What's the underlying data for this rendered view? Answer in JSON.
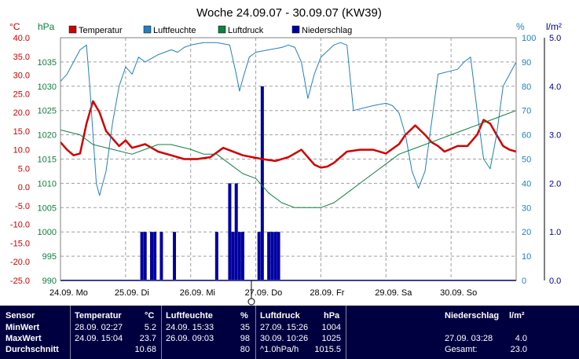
{
  "title": "Woche 24.09.07 - 30.09.07 (KW39)",
  "units": {
    "temp": "°C",
    "pressure": "hPa",
    "humidity": "%",
    "rain": "l/m²"
  },
  "legend": [
    {
      "label": "Temperatur",
      "color": "#d00000"
    },
    {
      "label": "Luftfeuchte",
      "color": "#2080c0"
    },
    {
      "label": "Luftdruck",
      "color": "#108040"
    },
    {
      "label": "Niederschlag",
      "color": "#0000a0"
    }
  ],
  "axes": {
    "temp_ticks": [
      "40.0",
      "35.0",
      "30.0",
      "25.0",
      "20.0",
      "15.0",
      "10.0",
      "5.0",
      "0.0",
      "-5.0",
      "-10.0",
      "-15.0",
      "-20.0",
      "-25.0"
    ],
    "pressure_ticks": [
      "1035",
      "1030",
      "1025",
      "1020",
      "1015",
      "1010",
      "1005",
      "1000",
      "995",
      "990"
    ],
    "humidity_ticks": [
      "100",
      "90",
      "80",
      "70",
      "60",
      "50",
      "40",
      "30",
      "20",
      "10",
      "0"
    ],
    "rain_ticks": [
      "5.0",
      "4.0",
      "3.0",
      "2.0",
      "1.0",
      "0.0"
    ],
    "day_labels": [
      "24.09. Mo",
      "25.09. Di",
      "26.09. Mi",
      "27.09. Do",
      "28.09. Fr",
      "29.09. Sa",
      "30.09. So"
    ]
  },
  "chart_data": {
    "type": "line",
    "x_unit": "days since 24.09.07 00:00",
    "xlim": [
      0,
      7
    ],
    "grid": true,
    "legend_position": "top",
    "series": [
      {
        "name": "Temperatur",
        "axis": "temp",
        "ylim": [
          -25,
          40
        ],
        "color": "#d00000",
        "x": [
          0,
          0.1,
          0.2,
          0.3,
          0.4,
          0.5,
          0.6,
          0.7,
          0.8,
          0.9,
          1.0,
          1.1,
          1.2,
          1.3,
          1.4,
          1.5,
          1.7,
          1.9,
          2.1,
          2.3,
          2.5,
          2.8,
          2.95,
          3.1,
          3.3,
          3.5,
          3.7,
          3.9,
          4.0,
          4.1,
          4.2,
          4.4,
          4.6,
          4.8,
          5.0,
          5.2,
          5.3,
          5.45,
          5.6,
          5.7,
          5.8,
          5.9,
          6.1,
          6.25,
          6.4,
          6.5,
          6.6,
          6.7,
          6.8,
          6.9,
          7.0
        ],
        "y": [
          12,
          10,
          8.5,
          9,
          17,
          23,
          20,
          15,
          13,
          11,
          12.5,
          10.5,
          11,
          11.5,
          10.5,
          9.5,
          8.5,
          7.5,
          7.5,
          8,
          10.5,
          8.5,
          8,
          7.5,
          7,
          8,
          10,
          6,
          5.2,
          5.5,
          6.5,
          9.5,
          10,
          10,
          9,
          11.5,
          14,
          16.5,
          14,
          12,
          11,
          9.5,
          11,
          11,
          14,
          18,
          17,
          14,
          11,
          10,
          9.5
        ]
      },
      {
        "name": "Luftfeuchte",
        "axis": "humidity",
        "ylim": [
          0,
          100
        ],
        "color": "#2080c0",
        "x": [
          0,
          0.1,
          0.2,
          0.3,
          0.4,
          0.45,
          0.5,
          0.55,
          0.6,
          0.7,
          0.8,
          0.9,
          1.0,
          1.1,
          1.2,
          1.3,
          1.5,
          1.7,
          1.8,
          1.9,
          2.0,
          2.2,
          2.4,
          2.6,
          2.7,
          2.75,
          2.8,
          2.9,
          3.0,
          3.2,
          3.4,
          3.5,
          3.6,
          3.7,
          3.8,
          3.9,
          4.0,
          4.2,
          4.3,
          4.4,
          4.5,
          4.8,
          5.0,
          5.1,
          5.2,
          5.3,
          5.4,
          5.5,
          5.6,
          5.8,
          6.1,
          6.2,
          6.3,
          6.4,
          6.5,
          6.6,
          6.7,
          6.8,
          6.9,
          7.0
        ],
        "y": [
          82,
          85,
          90,
          95,
          97,
          80,
          60,
          40,
          35,
          45,
          65,
          80,
          88,
          85,
          92,
          90,
          93,
          95,
          94,
          96,
          97,
          98,
          98,
          97,
          85,
          78,
          83,
          92,
          94,
          95,
          96,
          97,
          96,
          90,
          75,
          85,
          92,
          97,
          98,
          97,
          70,
          72,
          73,
          72,
          69,
          60,
          45,
          38,
          45,
          85,
          87,
          90,
          92,
          70,
          50,
          46,
          60,
          80,
          85,
          90
        ]
      },
      {
        "name": "Luftdruck",
        "axis": "pressure",
        "ylim": [
          990,
          1040
        ],
        "color": "#108040",
        "x": [
          0,
          0.3,
          0.5,
          0.8,
          1.1,
          1.3,
          1.5,
          1.7,
          2.0,
          2.2,
          2.4,
          2.6,
          2.8,
          3.0,
          3.2,
          3.4,
          3.6,
          3.8,
          4.0,
          4.2,
          4.4,
          4.6,
          4.8,
          5.0,
          5.2,
          5.4,
          5.6,
          5.8,
          6.0,
          6.2,
          6.4,
          6.6,
          6.8,
          7.0
        ],
        "y": [
          1021,
          1020,
          1018,
          1017,
          1016,
          1017,
          1018,
          1018,
          1017,
          1016,
          1016,
          1014,
          1012,
          1011,
          1008,
          1006,
          1005,
          1005,
          1005,
          1006,
          1008,
          1010,
          1012,
          1014,
          1016,
          1017,
          1018,
          1019,
          1020,
          1021,
          1022,
          1023,
          1024,
          1025
        ]
      },
      {
        "name": "Niederschlag",
        "axis": "rain",
        "ylim": [
          0,
          5
        ],
        "type": "bar",
        "color": "#0000a0",
        "x": [
          1.25,
          1.3,
          1.4,
          1.45,
          1.55,
          1.75,
          2.4,
          2.6,
          2.65,
          2.7,
          2.75,
          2.8,
          3.05,
          3.1,
          3.2,
          3.25,
          3.3,
          3.35
        ],
        "y": [
          1.0,
          1.0,
          1.0,
          1.0,
          1.0,
          1.0,
          1.0,
          2.0,
          1.0,
          2.0,
          1.0,
          1.0,
          1.0,
          4.0,
          1.0,
          1.0,
          1.0,
          1.0
        ]
      }
    ]
  },
  "stats": {
    "header": {
      "sensor": "Sensor",
      "temp": "Temperatur",
      "temp_unit": "°C",
      "hum": "Luftfeuchte",
      "hum_unit": "%",
      "press": "Luftdruck",
      "press_unit": "hPa",
      "rain": "Niederschlag",
      "rain_unit": "l/m²"
    },
    "rows": [
      {
        "label": "MinWert",
        "temp_time": "28.09.  02:27",
        "temp_val": "5.2",
        "hum_time": "24.09.  15:33",
        "hum_val": "35",
        "press_time": "27.09.  15:26",
        "press_val": "1004",
        "rain_time": "",
        "rain_val": ""
      },
      {
        "label": "MaxWert",
        "temp_time": "24.09.  15:04",
        "temp_val": "23.7",
        "hum_time": "26.09.  09:03",
        "hum_val": "98",
        "press_time": "30.09.  10:26",
        "press_val": "1025",
        "rain_time": "27.09.  03:28",
        "rain_val": "4.0"
      },
      {
        "label": "Durchschnitt",
        "temp_time": "",
        "temp_val": "10.68",
        "hum_time": "",
        "hum_val": "80",
        "press_time": "^1.0hPa/h",
        "press_val": "1015.5",
        "rain_time": "Gesamt:",
        "rain_val": "23.0"
      }
    ]
  }
}
